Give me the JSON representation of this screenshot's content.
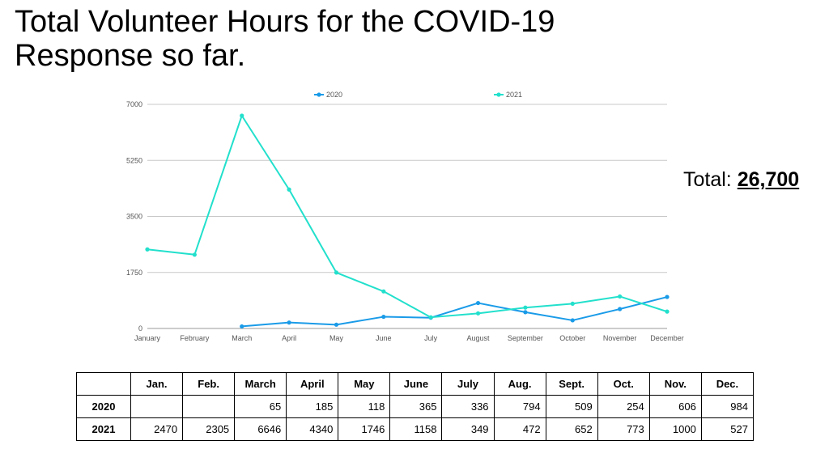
{
  "slide": {
    "title": "Total Volunteer Hours for the COVID-19 Response so far.",
    "total_label": "Total:",
    "total_value": "26,700"
  },
  "chart_data": {
    "type": "line",
    "categories": [
      "January",
      "February",
      "March",
      "April",
      "May",
      "June",
      "July",
      "August",
      "September",
      "October",
      "November",
      "December"
    ],
    "series": [
      {
        "name": "2020",
        "color": "#1a9be8",
        "values": [
          null,
          null,
          65,
          185,
          118,
          365,
          336,
          794,
          509,
          254,
          606,
          984
        ]
      },
      {
        "name": "2021",
        "color": "#22e0cc",
        "values": [
          2470,
          2305,
          6646,
          4340,
          1746,
          1158,
          349,
          472,
          652,
          773,
          1000,
          527
        ]
      }
    ],
    "yticks": [
      "0",
      "1750",
      "3500",
      "5250",
      "7000"
    ],
    "ylim": [
      0,
      7000
    ],
    "grid": true,
    "legend": "top"
  },
  "table": {
    "headers": [
      "",
      "Jan.",
      "Feb.",
      "March",
      "April",
      "May",
      "June",
      "July",
      "Aug.",
      "Sept.",
      "Oct.",
      "Nov.",
      "Dec."
    ],
    "rows": [
      {
        "label": "2020",
        "values": [
          "",
          "",
          "65",
          "185",
          "118",
          "365",
          "336",
          "794",
          "509",
          "254",
          "606",
          "984"
        ]
      },
      {
        "label": "2021",
        "values": [
          "2470",
          "2305",
          "6646",
          "4340",
          "1746",
          "1158",
          "349",
          "472",
          "652",
          "773",
          "1000",
          "527"
        ]
      }
    ]
  }
}
